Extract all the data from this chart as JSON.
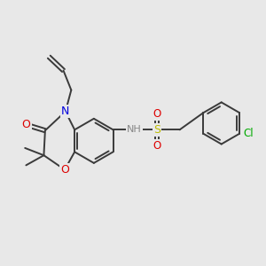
{
  "bg_color": "#e8e8e8",
  "bond_color": "#3a3a3a",
  "atom_colors": {
    "N": "#0000dd",
    "O": "#dd0000",
    "S": "#bbbb00",
    "Cl": "#00aa00",
    "NH": "#888888"
  },
  "lw": 1.4,
  "dbo": 0.06
}
